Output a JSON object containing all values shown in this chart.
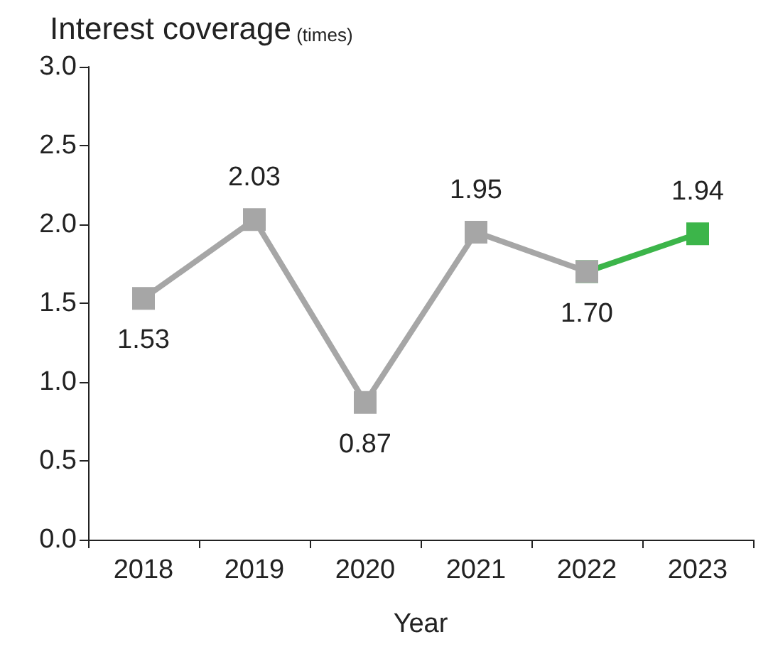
{
  "chart_data": {
    "type": "line",
    "title": "Interest coverage (times)",
    "xlabel": "Year",
    "categories": [
      "2018",
      "2019",
      "2020",
      "2021",
      "2022",
      "2023"
    ],
    "series": [
      {
        "color": "#3cb54a",
        "values": [
          null,
          null,
          null,
          null,
          1.7,
          1.94
        ],
        "value_labels": [
          null,
          null,
          null,
          null,
          null,
          "1.94"
        ]
      },
      {
        "color": "#a6a6a6",
        "values": [
          1.53,
          2.03,
          0.87,
          1.95,
          1.7,
          null
        ],
        "value_labels": [
          "1.53",
          "2.03",
          "0.87",
          "1.95",
          "1.70",
          null
        ]
      }
    ],
    "ylim": [
      0,
      3
    ],
    "yticks": [
      {
        "value": 0,
        "label": "0.0"
      },
      {
        "value": 0.5,
        "label": "0.5"
      },
      {
        "value": 1,
        "label": "1.0"
      },
      {
        "value": 1.5,
        "label": "1.5"
      },
      {
        "value": 2,
        "label": "2.0"
      },
      {
        "value": 2.5,
        "label": "2.5"
      },
      {
        "value": 3,
        "label": "3.0"
      }
    ],
    "grid": false,
    "marker": "square",
    "line_style": "solid"
  }
}
